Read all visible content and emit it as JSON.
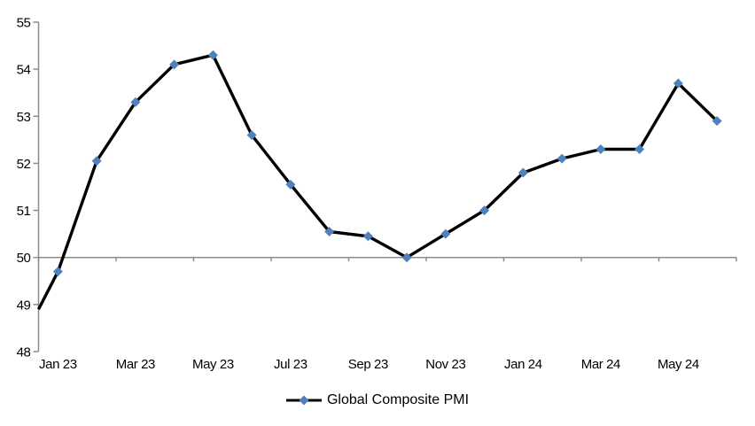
{
  "chart_data": {
    "type": "line",
    "title": "",
    "categories": [
      "Jan 23",
      "Feb 23",
      "Mar 23",
      "Apr 23",
      "May 23",
      "Jun 23",
      "Jul 23",
      "Aug 23",
      "Sep 23",
      "Oct 23",
      "Nov 23",
      "Dec 23",
      "Jan 24",
      "Feb 24",
      "Mar 24",
      "Apr 24",
      "May 24",
      "Jun 24"
    ],
    "series": [
      {
        "name": "Global Composite PMI",
        "values": [
          49.7,
          52.05,
          53.3,
          54.1,
          54.3,
          52.6,
          51.55,
          50.55,
          50.45,
          50.0,
          50.5,
          51.0,
          51.8,
          52.1,
          52.3,
          52.3,
          53.7,
          52.9
        ],
        "edge_start_value": 48.9,
        "line_color": "#000000",
        "line_width": 3.4,
        "marker": "diamond",
        "marker_color": "#4F81BD",
        "marker_size": 11
      }
    ],
    "ylim": [
      48,
      55
    ],
    "ytick_interval": 1,
    "ytick_labels": [
      "48",
      "49",
      "50",
      "51",
      "52",
      "53",
      "54",
      "55"
    ],
    "xtick_labels_visible": [
      "Jan 23",
      "Mar 23",
      "May 23",
      "Jul 23",
      "Sep 23",
      "Nov 23",
      "Jan 24",
      "Mar 24",
      "May 24"
    ],
    "x_label_every": 2,
    "category_axis_crosses_at": 50,
    "grid": "none",
    "legend_position": "bottom-center",
    "axis_color": "#8C8C8C",
    "text_color": "#000000",
    "background": "#FFFFFF"
  }
}
